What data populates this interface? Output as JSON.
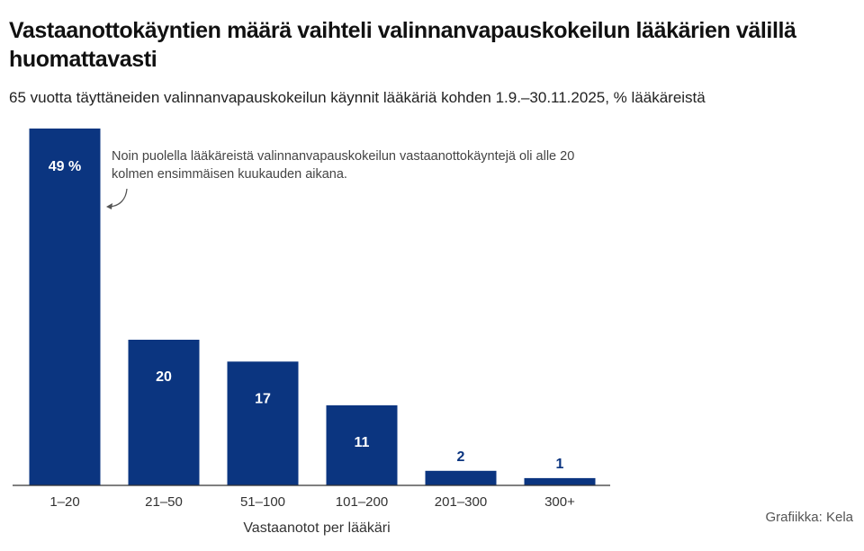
{
  "title": "Vastaanottokäyntien määrä vaihteli valinnanvapauskokeilun lääkärien välillä huomattavasti",
  "subtitle": "65 vuotta täyttäneiden valinnanvapauskokeilun käynnit lääkäriä kohden 1.9.–30.11.2025, % lääkäreistä",
  "annotation": "Noin puolella lääkäreistä valinnanvapauskokeilun vastaanottokäyntejä oli alle 20 kolmen ensimmäisen kuukauden aikana.",
  "credit": "Grafiikka: Kela",
  "colors": {
    "bar": "#0b3580",
    "label_inside": "#ffffff",
    "label_outside": "#0b3580",
    "axis": "#333333",
    "annotation_arrow": "#555555"
  },
  "chart_data": {
    "type": "bar",
    "categories": [
      "1–20",
      "21–50",
      "51–100",
      "101–200",
      "201–300",
      "300+"
    ],
    "values": [
      49,
      20,
      17,
      11,
      2,
      1
    ],
    "data_labels": [
      "49 %",
      "20",
      "17",
      "11",
      "2",
      "1"
    ],
    "xlabel": "Vastaanotot per lääkäri",
    "ylabel": "",
    "ylim": [
      0,
      49
    ],
    "grid": false,
    "legend": "none"
  }
}
